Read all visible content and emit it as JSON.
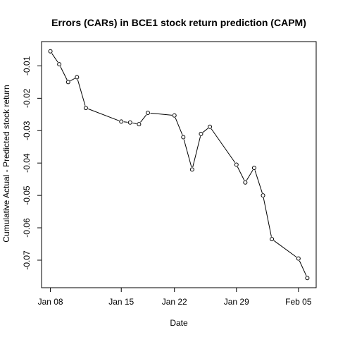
{
  "chart_data": {
    "type": "line",
    "title": "Errors (CARs) in BCE1 stock return prediction (CAPM)",
    "xlabel": "Date",
    "ylabel": "Cumulative Actual - Predicted stock return",
    "x_tick_labels": [
      "Jan 08",
      "Jan 15",
      "Jan 22",
      "Jan 29",
      "Feb 05"
    ],
    "y_tick_labels": [
      "-0.07",
      "-0.06",
      "-0.05",
      "-0.04",
      "-0.03",
      "-0.02",
      "-0.01"
    ],
    "y_ticks": [
      -0.07,
      -0.06,
      -0.05,
      -0.04,
      -0.03,
      -0.02,
      -0.01
    ],
    "xlim": [
      "2018-01-07",
      "2018-02-07"
    ],
    "ylim": [
      -0.0785,
      -0.0025
    ],
    "line_style": "line with open circle markers",
    "grid": false,
    "series": [
      {
        "x": [
          "2018-01-08",
          "2018-01-09",
          "2018-01-10",
          "2018-01-11",
          "2018-01-12",
          "2018-01-16",
          "2018-01-17",
          "2018-01-18",
          "2018-01-19",
          "2018-01-22",
          "2018-01-23",
          "2018-01-24",
          "2018-01-25",
          "2018-01-26",
          "2018-01-29",
          "2018-01-30",
          "2018-01-31",
          "2018-02-01",
          "2018-02-02",
          "2018-02-05",
          "2018-02-06"
        ],
        "values": [
          -0.0055,
          -0.0095,
          -0.015,
          -0.0135,
          -0.023,
          -0.0272,
          -0.0275,
          -0.028,
          -0.0245,
          -0.0253,
          -0.032,
          -0.042,
          -0.031,
          -0.0288,
          -0.0405,
          -0.046,
          -0.0415,
          -0.05,
          -0.0635,
          -0.0695,
          -0.0755
        ]
      }
    ]
  }
}
